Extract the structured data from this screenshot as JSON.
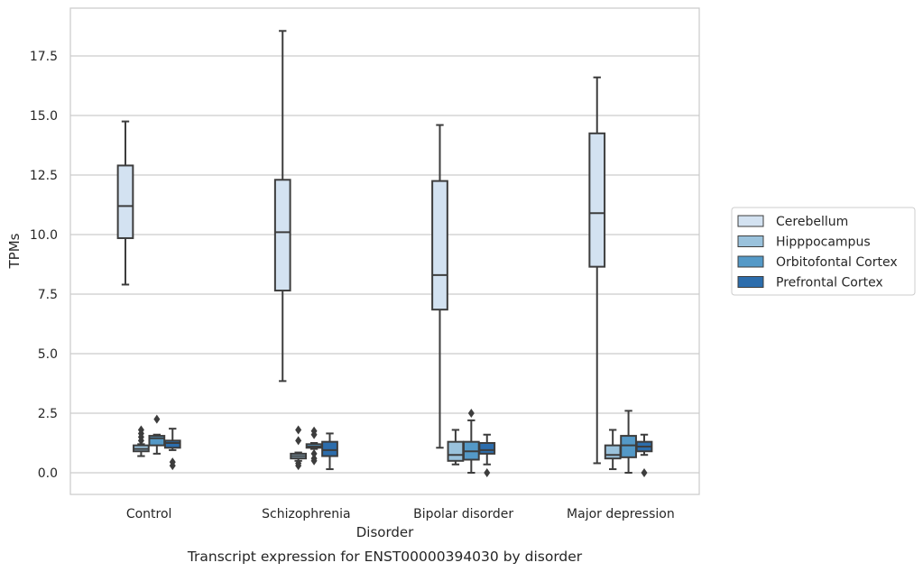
{
  "chart_data": {
    "type": "box",
    "xlabel": "Disorder",
    "ylabel": "TPMs",
    "caption": "Transcript expression for ENST00000394030 by disorder",
    "ylim": [
      -0.9,
      19.4
    ],
    "yticks": [
      "0.0",
      "2.5",
      "5.0",
      "7.5",
      "10.0",
      "12.5",
      "15.0",
      "17.5"
    ],
    "ytick_values": [
      0,
      2.5,
      5,
      7.5,
      10,
      12.5,
      15,
      17.5
    ],
    "grid": "horizontal",
    "legend_position": "right",
    "categories": [
      "Control",
      "Schizophrenia",
      "Bipolar disorder",
      "Major depression"
    ],
    "series": [
      {
        "name": "Cerebellum",
        "color": "#d3e2f1",
        "boxes": [
          {
            "whislo": 7.9,
            "q1": 9.85,
            "med": 11.2,
            "q3": 12.9,
            "whishi": 14.75,
            "fliers": []
          },
          {
            "whislo": 3.85,
            "q1": 7.65,
            "med": 10.1,
            "q3": 12.3,
            "whishi": 18.55,
            "fliers": []
          },
          {
            "whislo": 1.05,
            "q1": 6.85,
            "med": 8.3,
            "q3": 12.25,
            "whishi": 14.6,
            "fliers": []
          },
          {
            "whislo": 0.4,
            "q1": 8.65,
            "med": 10.9,
            "q3": 14.25,
            "whishi": 16.6,
            "fliers": []
          }
        ]
      },
      {
        "name": "Hipppocampus",
        "color": "#9ac2dc",
        "boxes": [
          {
            "whislo": 0.7,
            "q1": 0.9,
            "med": 1.0,
            "q3": 1.15,
            "whishi": 1.2,
            "fliers": [
              1.35,
              1.5,
              1.65,
              1.8
            ]
          },
          {
            "whislo": 0.5,
            "q1": 0.6,
            "med": 0.7,
            "q3": 0.8,
            "whishi": 0.85,
            "fliers": [
              0.3,
              0.4,
              1.35,
              1.8
            ]
          },
          {
            "whislo": 0.35,
            "q1": 0.5,
            "med": 0.75,
            "q3": 1.3,
            "whishi": 1.8,
            "fliers": []
          },
          {
            "whislo": 0.15,
            "q1": 0.6,
            "med": 0.75,
            "q3": 1.15,
            "whishi": 1.8,
            "fliers": []
          }
        ]
      },
      {
        "name": "Orbitofontal Cortex",
        "color": "#5499c7",
        "boxes": [
          {
            "whislo": 0.8,
            "q1": 1.15,
            "med": 1.45,
            "q3": 1.55,
            "whishi": 1.6,
            "fliers": [
              2.25
            ]
          },
          {
            "whislo": 1.0,
            "q1": 1.05,
            "med": 1.1,
            "q3": 1.2,
            "whishi": 1.25,
            "fliers": [
              0.5,
              0.6,
              0.8,
              1.6,
              1.75
            ]
          },
          {
            "whislo": 0.0,
            "q1": 0.55,
            "med": 0.9,
            "q3": 1.3,
            "whishi": 2.2,
            "fliers": [
              2.5
            ]
          },
          {
            "whislo": 0.0,
            "q1": 0.65,
            "med": 1.15,
            "q3": 1.55,
            "whishi": 2.6,
            "fliers": []
          }
        ]
      },
      {
        "name": "Prefrontal Cortex",
        "color": "#2c6dac",
        "boxes": [
          {
            "whislo": 0.95,
            "q1": 1.05,
            "med": 1.25,
            "q3": 1.35,
            "whishi": 1.85,
            "fliers": [
              0.3,
              0.45
            ]
          },
          {
            "whislo": 0.15,
            "q1": 0.7,
            "med": 0.95,
            "q3": 1.3,
            "whishi": 1.65,
            "fliers": []
          },
          {
            "whislo": 0.35,
            "q1": 0.8,
            "med": 0.95,
            "q3": 1.25,
            "whishi": 1.6,
            "fliers": [
              0.0
            ]
          },
          {
            "whislo": 0.75,
            "q1": 0.9,
            "med": 1.1,
            "q3": 1.3,
            "whishi": 1.6,
            "fliers": [
              0.0
            ]
          }
        ]
      }
    ]
  }
}
